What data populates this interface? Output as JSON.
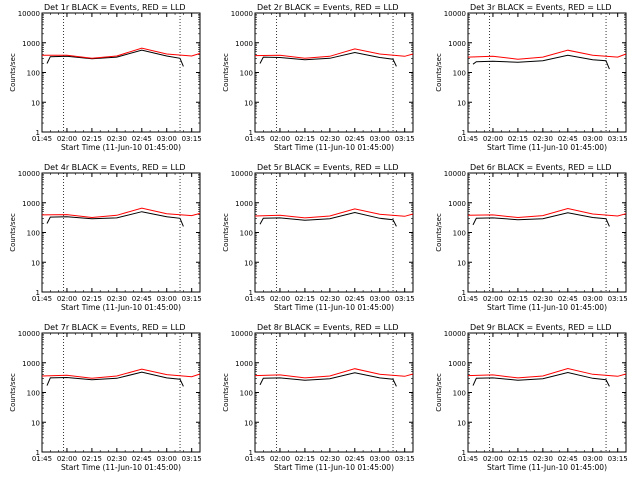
{
  "chart_data": [
    {
      "type": "line",
      "title": "Det 1r BLACK = Events, RED = LLD",
      "ylabel": "Counts/sec",
      "xlabel": "Start Time (11-Jun-10 01:45:00)",
      "x": [
        "01:45",
        "02:00",
        "02:15",
        "02:30",
        "02:45",
        "03:00",
        "03:15"
      ],
      "xlim": [
        "01:45",
        "03:20"
      ],
      "ylim": [
        1,
        10000
      ],
      "yscale": "log",
      "yticks": [
        "1",
        "10",
        "100",
        "1000",
        "10000"
      ],
      "vlines": [
        "01:58",
        "03:08"
      ],
      "series": [
        {
          "color": "#000000",
          "points": [
            [
              "01:48",
              200
            ],
            [
              "01:50",
              340
            ],
            [
              "02:00",
              350
            ],
            [
              "02:15",
              290
            ],
            [
              "02:30",
              330
            ],
            [
              "02:45",
              560
            ],
            [
              "03:00",
              360
            ],
            [
              "03:08",
              300
            ],
            [
              "03:10",
              160
            ]
          ]
        },
        {
          "color": "#ff0000",
          "points": [
            [
              "01:45",
              380
            ],
            [
              "02:00",
              380
            ],
            [
              "02:15",
              300
            ],
            [
              "02:30",
              360
            ],
            [
              "02:45",
              660
            ],
            [
              "03:00",
              420
            ],
            [
              "03:15",
              360
            ],
            [
              "03:20",
              440
            ]
          ]
        }
      ]
    },
    {
      "type": "line",
      "title": "Det 2r BLACK = Events, RED = LLD",
      "ylabel": "Counts/sec",
      "xlabel": "Start Time (11-Jun-10 01:45:00)",
      "x": [
        "01:45",
        "02:00",
        "02:15",
        "02:30",
        "02:45",
        "03:00",
        "03:15"
      ],
      "xlim": [
        "01:45",
        "03:20"
      ],
      "ylim": [
        1,
        10000
      ],
      "yscale": "log",
      "yticks": [
        "1",
        "10",
        "100",
        "1000",
        "10000"
      ],
      "vlines": [
        "01:58",
        "03:08"
      ],
      "series": [
        {
          "color": "#000000",
          "points": [
            [
              "01:48",
              200
            ],
            [
              "01:50",
              330
            ],
            [
              "02:00",
              320
            ],
            [
              "02:15",
              270
            ],
            [
              "02:30",
              300
            ],
            [
              "02:45",
              470
            ],
            [
              "03:00",
              320
            ],
            [
              "03:08",
              280
            ],
            [
              "03:10",
              160
            ]
          ]
        },
        {
          "color": "#ff0000",
          "points": [
            [
              "01:45",
              370
            ],
            [
              "02:00",
              380
            ],
            [
              "02:15",
              300
            ],
            [
              "02:30",
              350
            ],
            [
              "02:45",
              620
            ],
            [
              "03:00",
              420
            ],
            [
              "03:15",
              350
            ],
            [
              "03:20",
              420
            ]
          ]
        }
      ]
    },
    {
      "type": "line",
      "title": "Det 3r BLACK = Events, RED = LLD",
      "ylabel": "Counts/sec",
      "xlabel": "Start Time (11-Jun-10 01:45:00)",
      "x": [
        "01:45",
        "02:00",
        "02:15",
        "02:30",
        "02:45",
        "03:00",
        "03:15"
      ],
      "xlim": [
        "01:45",
        "03:20"
      ],
      "ylim": [
        1,
        10000
      ],
      "yscale": "log",
      "yticks": [
        "1",
        "10",
        "100",
        "1000",
        "10000"
      ],
      "vlines": [
        "01:58",
        "03:08"
      ],
      "series": [
        {
          "color": "#000000",
          "points": [
            [
              "01:48",
              190
            ],
            [
              "01:50",
              230
            ],
            [
              "02:00",
              240
            ],
            [
              "02:15",
              220
            ],
            [
              "02:30",
              250
            ],
            [
              "02:45",
              380
            ],
            [
              "03:00",
              270
            ],
            [
              "03:08",
              250
            ],
            [
              "03:10",
              130
            ]
          ]
        },
        {
          "color": "#ff0000",
          "points": [
            [
              "01:45",
              330
            ],
            [
              "02:00",
              350
            ],
            [
              "02:15",
              280
            ],
            [
              "02:30",
              330
            ],
            [
              "02:45",
              560
            ],
            [
              "03:00",
              380
            ],
            [
              "03:15",
              330
            ],
            [
              "03:20",
              420
            ]
          ]
        }
      ]
    },
    {
      "type": "line",
      "title": "Det 4r BLACK = Events, RED = LLD",
      "ylabel": "Counts/sec",
      "xlabel": "Start Time (11-Jun-10 01:45:00)",
      "x": [
        "01:45",
        "02:00",
        "02:15",
        "02:30",
        "02:45",
        "03:00",
        "03:15"
      ],
      "xlim": [
        "01:45",
        "03:20"
      ],
      "ylim": [
        1,
        10000
      ],
      "yscale": "log",
      "yticks": [
        "1",
        "10",
        "100",
        "1000",
        "10000"
      ],
      "vlines": [
        "01:58",
        "03:08"
      ],
      "series": [
        {
          "color": "#000000",
          "points": [
            [
              "01:48",
              200
            ],
            [
              "01:50",
              330
            ],
            [
              "02:00",
              340
            ],
            [
              "02:15",
              290
            ],
            [
              "02:30",
              310
            ],
            [
              "02:45",
              500
            ],
            [
              "03:00",
              340
            ],
            [
              "03:08",
              300
            ],
            [
              "03:10",
              160
            ]
          ]
        },
        {
          "color": "#ff0000",
          "points": [
            [
              "01:45",
              390
            ],
            [
              "02:00",
              400
            ],
            [
              "02:15",
              320
            ],
            [
              "02:30",
              380
            ],
            [
              "02:45",
              660
            ],
            [
              "03:00",
              430
            ],
            [
              "03:15",
              370
            ],
            [
              "03:20",
              440
            ]
          ]
        }
      ]
    },
    {
      "type": "line",
      "title": "Det 5r BLACK = Events, RED = LLD",
      "ylabel": "Counts/sec",
      "xlabel": "Start Time (11-Jun-10 01:45:00)",
      "x": [
        "01:45",
        "02:00",
        "02:15",
        "02:30",
        "02:45",
        "03:00",
        "03:15"
      ],
      "xlim": [
        "01:45",
        "03:20"
      ],
      "ylim": [
        1,
        10000
      ],
      "yscale": "log",
      "yticks": [
        "1",
        "10",
        "100",
        "1000",
        "10000"
      ],
      "vlines": [
        "01:58",
        "03:08"
      ],
      "series": [
        {
          "color": "#000000",
          "points": [
            [
              "01:48",
              190
            ],
            [
              "01:50",
              300
            ],
            [
              "02:00",
              310
            ],
            [
              "02:15",
              260
            ],
            [
              "02:30",
              290
            ],
            [
              "02:45",
              470
            ],
            [
              "03:00",
              300
            ],
            [
              "03:08",
              270
            ],
            [
              "03:10",
              160
            ]
          ]
        },
        {
          "color": "#ff0000",
          "points": [
            [
              "01:45",
              360
            ],
            [
              "02:00",
              380
            ],
            [
              "02:15",
              310
            ],
            [
              "02:30",
              360
            ],
            [
              "02:45",
              620
            ],
            [
              "03:00",
              410
            ],
            [
              "03:15",
              350
            ],
            [
              "03:20",
              420
            ]
          ]
        }
      ]
    },
    {
      "type": "line",
      "title": "Det 6r BLACK = Events, RED = LLD",
      "ylabel": "Counts/sec",
      "xlabel": "Start Time (11-Jun-10 01:45:00)",
      "x": [
        "01:45",
        "02:00",
        "02:15",
        "02:30",
        "02:45",
        "03:00",
        "03:15"
      ],
      "xlim": [
        "01:45",
        "03:20"
      ],
      "ylim": [
        1,
        10000
      ],
      "yscale": "log",
      "yticks": [
        "1",
        "10",
        "100",
        "1000",
        "10000"
      ],
      "vlines": [
        "01:58",
        "03:08"
      ],
      "series": [
        {
          "color": "#000000",
          "points": [
            [
              "01:48",
              180
            ],
            [
              "01:50",
              300
            ],
            [
              "02:00",
              310
            ],
            [
              "02:15",
              270
            ],
            [
              "02:30",
              290
            ],
            [
              "02:45",
              460
            ],
            [
              "03:00",
              320
            ],
            [
              "03:08",
              290
            ],
            [
              "03:10",
              160
            ]
          ]
        },
        {
          "color": "#ff0000",
          "points": [
            [
              "01:45",
              380
            ],
            [
              "02:00",
              390
            ],
            [
              "02:15",
              320
            ],
            [
              "02:30",
              370
            ],
            [
              "02:45",
              640
            ],
            [
              "03:00",
              420
            ],
            [
              "03:15",
              360
            ],
            [
              "03:20",
              430
            ]
          ]
        }
      ]
    },
    {
      "type": "line",
      "title": "Det 7r BLACK = Events, RED = LLD",
      "ylabel": "Counts/sec",
      "xlabel": "Start Time (11-Jun-10 01:45:00)",
      "x": [
        "01:45",
        "02:00",
        "02:15",
        "02:30",
        "02:45",
        "03:00",
        "03:15"
      ],
      "xlim": [
        "01:45",
        "03:20"
      ],
      "ylim": [
        1,
        10000
      ],
      "yscale": "log",
      "yticks": [
        "1",
        "10",
        "100",
        "1000",
        "10000"
      ],
      "vlines": [
        "01:58",
        "03:08"
      ],
      "series": [
        {
          "color": "#000000",
          "points": [
            [
              "01:48",
              170
            ],
            [
              "01:50",
              310
            ],
            [
              "02:00",
              320
            ],
            [
              "02:15",
              270
            ],
            [
              "02:30",
              300
            ],
            [
              "02:45",
              480
            ],
            [
              "03:00",
              310
            ],
            [
              "03:08",
              280
            ],
            [
              "03:10",
              160
            ]
          ]
        },
        {
          "color": "#ff0000",
          "points": [
            [
              "01:45",
              360
            ],
            [
              "02:00",
              380
            ],
            [
              "02:15",
              300
            ],
            [
              "02:30",
              360
            ],
            [
              "02:45",
              610
            ],
            [
              "03:00",
              400
            ],
            [
              "03:15",
              340
            ],
            [
              "03:20",
              420
            ]
          ]
        }
      ]
    },
    {
      "type": "line",
      "title": "Det 8r BLACK = Events, RED = LLD",
      "ylabel": "Counts/sec",
      "xlabel": "Start Time (11-Jun-10 01:45:00)",
      "x": [
        "01:45",
        "02:00",
        "02:15",
        "02:30",
        "02:45",
        "03:00",
        "03:15"
      ],
      "xlim": [
        "01:45",
        "03:20"
      ],
      "ylim": [
        1,
        10000
      ],
      "yscale": "log",
      "yticks": [
        "1",
        "10",
        "100",
        "1000",
        "10000"
      ],
      "vlines": [
        "01:58",
        "03:08"
      ],
      "series": [
        {
          "color": "#000000",
          "points": [
            [
              "01:48",
              180
            ],
            [
              "01:50",
              300
            ],
            [
              "02:00",
              310
            ],
            [
              "02:15",
              260
            ],
            [
              "02:30",
              290
            ],
            [
              "02:45",
              460
            ],
            [
              "03:00",
              310
            ],
            [
              "03:08",
              280
            ],
            [
              "03:10",
              160
            ]
          ]
        },
        {
          "color": "#ff0000",
          "points": [
            [
              "01:45",
              370
            ],
            [
              "02:00",
              390
            ],
            [
              "02:15",
              310
            ],
            [
              "02:30",
              360
            ],
            [
              "02:45",
              630
            ],
            [
              "03:00",
              410
            ],
            [
              "03:15",
              350
            ],
            [
              "03:20",
              420
            ]
          ]
        }
      ]
    },
    {
      "type": "line",
      "title": "Det 9r BLACK = Events, RED = LLD",
      "ylabel": "Counts/sec",
      "xlabel": "Start Time (11-Jun-10 01:45:00)",
      "x": [
        "01:45",
        "02:00",
        "02:15",
        "02:30",
        "02:45",
        "03:00",
        "03:15"
      ],
      "xlim": [
        "01:45",
        "03:20"
      ],
      "ylim": [
        1,
        10000
      ],
      "yscale": "log",
      "yticks": [
        "1",
        "10",
        "100",
        "1000",
        "10000"
      ],
      "vlines": [
        "01:58",
        "03:08"
      ],
      "series": [
        {
          "color": "#000000",
          "points": [
            [
              "01:48",
              170
            ],
            [
              "01:50",
              300
            ],
            [
              "02:00",
              310
            ],
            [
              "02:15",
              260
            ],
            [
              "02:30",
              290
            ],
            [
              "02:45",
              470
            ],
            [
              "03:00",
              300
            ],
            [
              "03:08",
              270
            ],
            [
              "03:10",
              160
            ]
          ]
        },
        {
          "color": "#ff0000",
          "points": [
            [
              "01:45",
              370
            ],
            [
              "02:00",
              390
            ],
            [
              "02:15",
              310
            ],
            [
              "02:30",
              360
            ],
            [
              "02:45",
              640
            ],
            [
              "03:00",
              410
            ],
            [
              "03:15",
              350
            ],
            [
              "03:20",
              420
            ]
          ]
        }
      ]
    }
  ]
}
